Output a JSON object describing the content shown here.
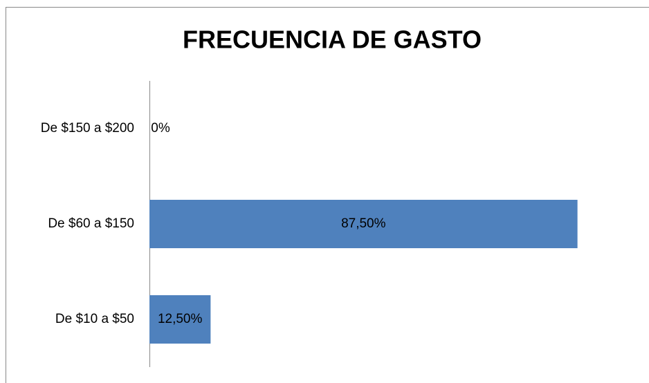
{
  "chart_data": {
    "type": "barh",
    "title": "FRECUENCIA DE GASTO",
    "categories": [
      "De $150 a $200",
      "De $60 a $150",
      "De $10 a $50"
    ],
    "values": [
      0,
      87.5,
      12.5
    ],
    "value_labels": [
      "0%",
      "87,50%",
      "12,50%"
    ],
    "color": "#4f81bd",
    "xlim": [
      0,
      100
    ]
  }
}
